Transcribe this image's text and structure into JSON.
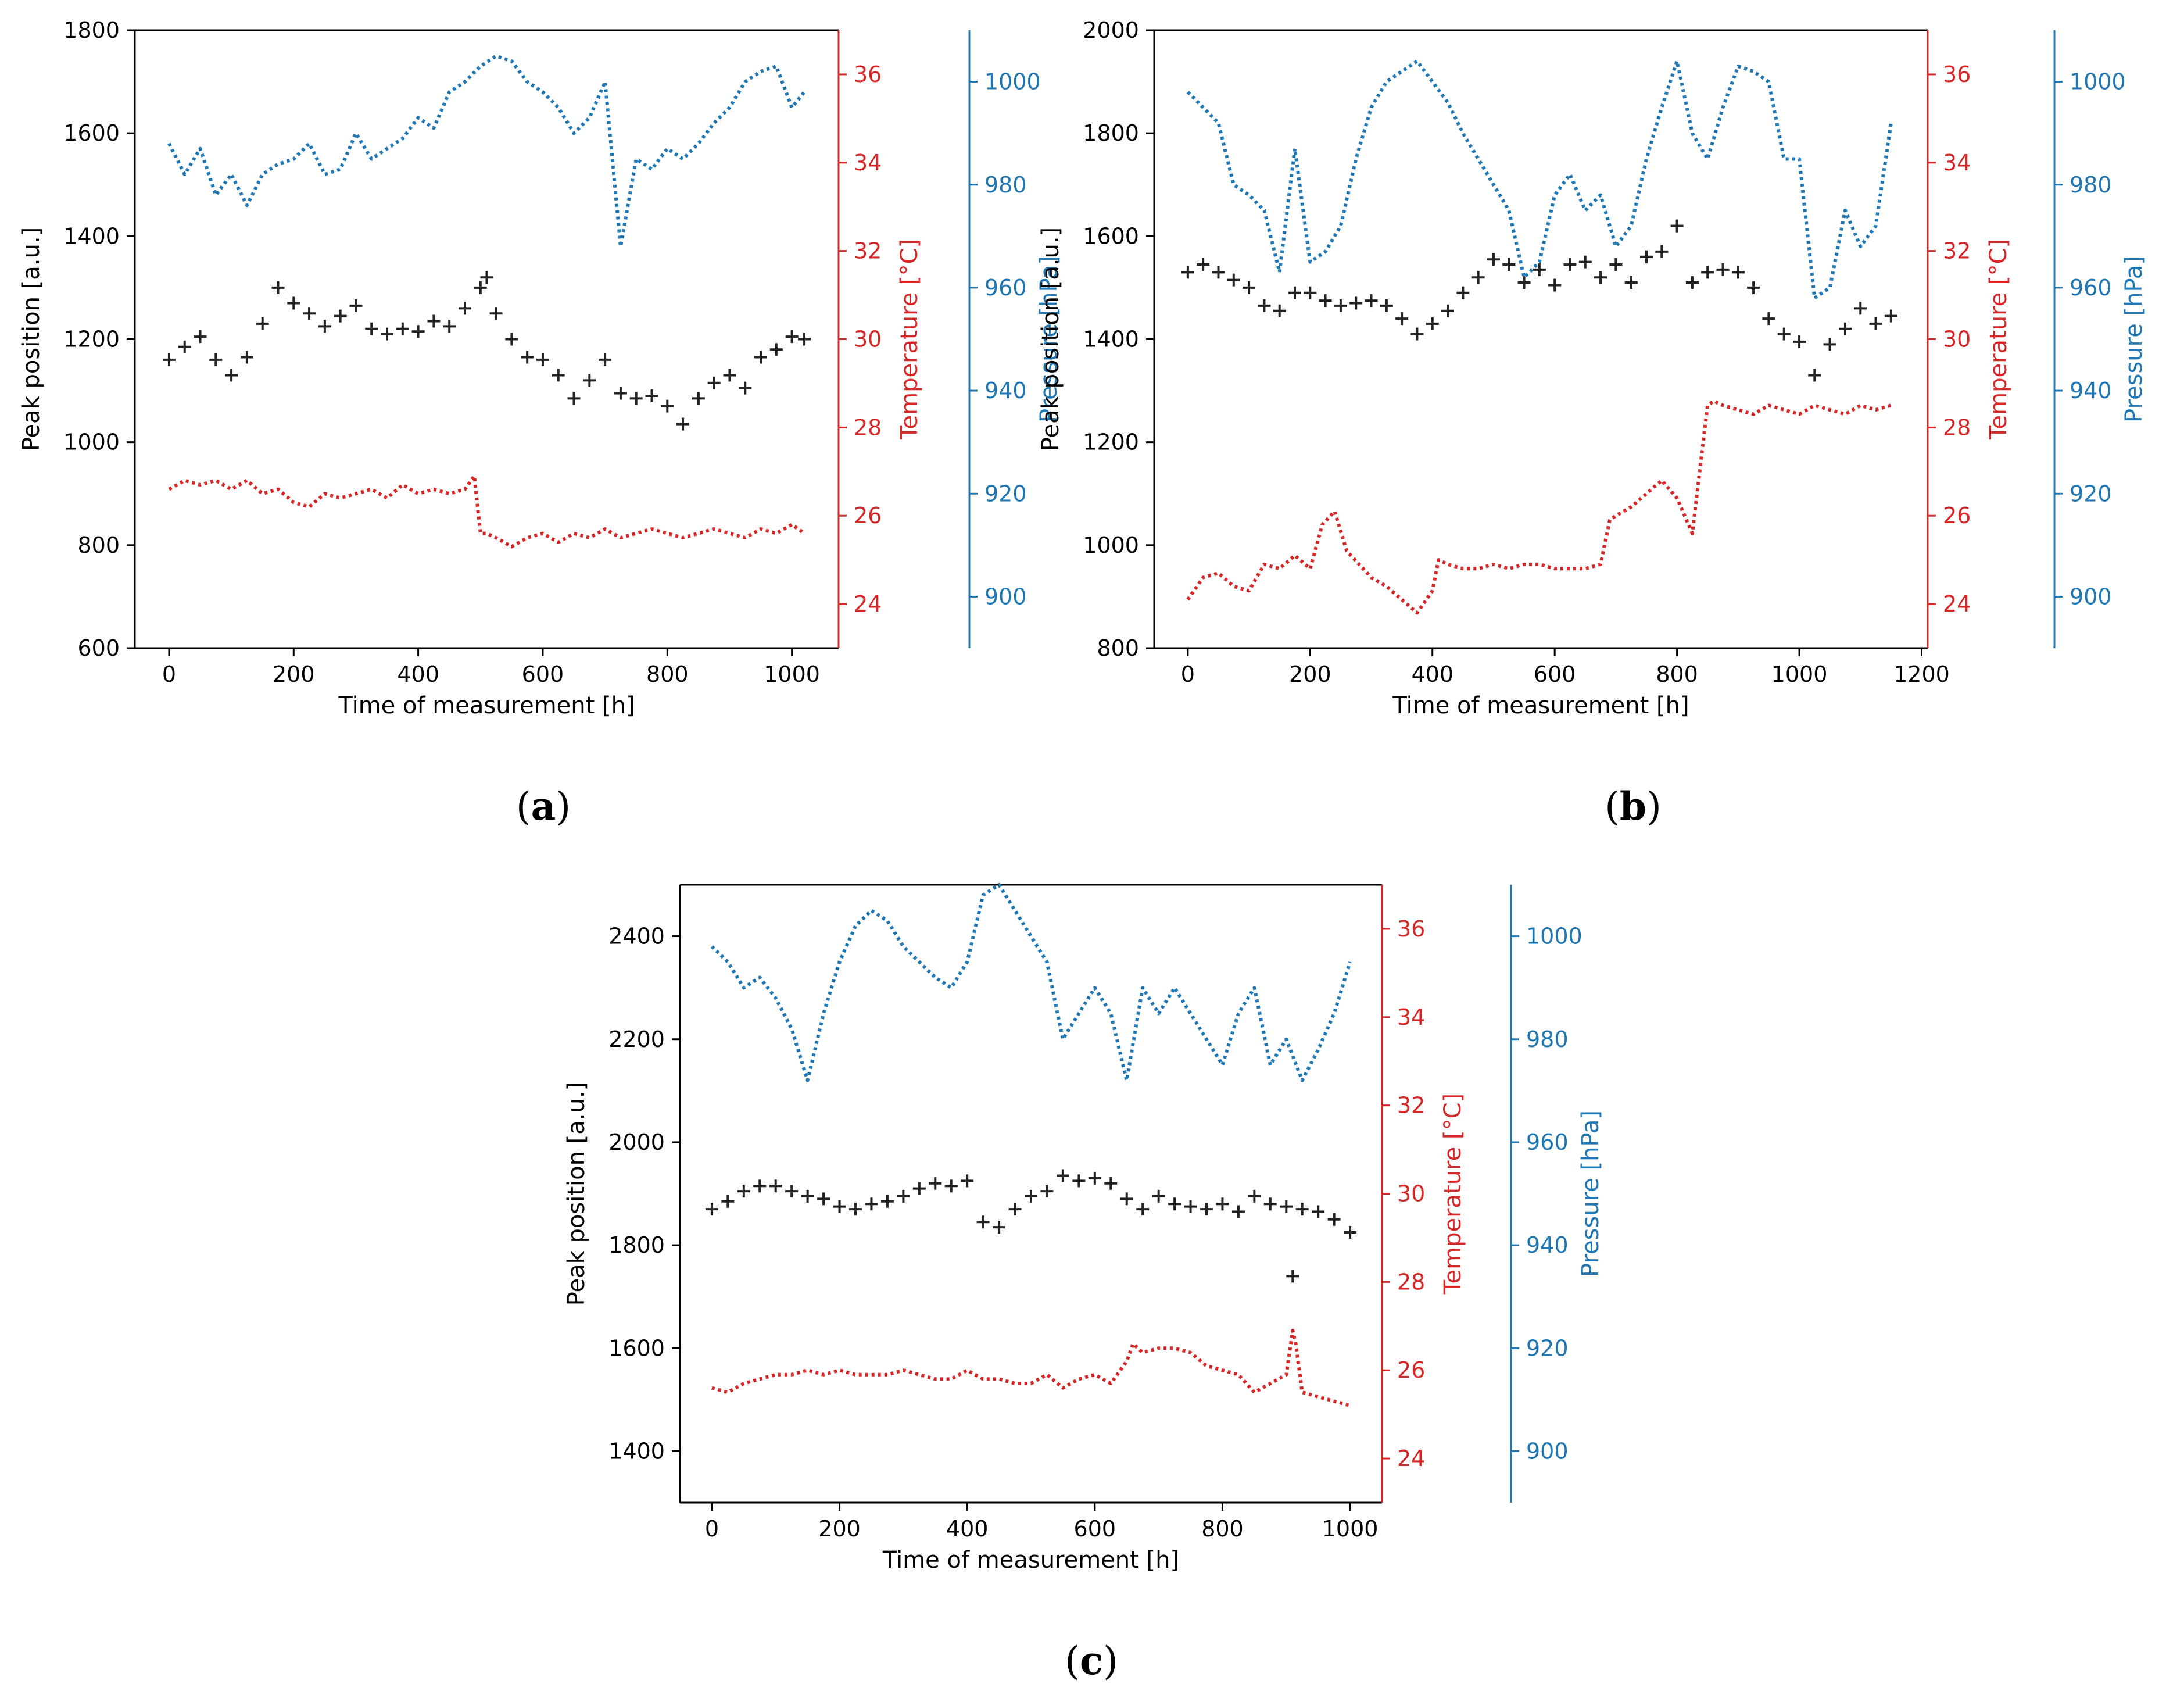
{
  "colors": {
    "peak": "#222222",
    "temperature": "#d62728",
    "pressure": "#1f77b4",
    "axis": "#000000"
  },
  "chart_data": [
    {
      "type": "line",
      "panel": "(a)",
      "caption": "(a)",
      "caption_letter": "a",
      "xlabel": "Time of measurement [h]",
      "ylabel": "Peak position [a.u.]",
      "y2label": "Temperature [°C]",
      "y3label": "Pressure [hPa]",
      "xlim": [
        -55,
        1075
      ],
      "xticks": [
        0,
        200,
        400,
        600,
        800,
        1000
      ],
      "ylim": [
        600,
        1800
      ],
      "yticks": [
        600,
        800,
        1000,
        1200,
        1400,
        1600,
        1800
      ],
      "y2lim": [
        23,
        37
      ],
      "y2ticks": [
        24,
        26,
        28,
        30,
        32,
        34,
        36
      ],
      "y3lim": [
        890,
        1010
      ],
      "y3ticks": [
        900,
        920,
        940,
        960,
        980,
        1000
      ],
      "series": [
        {
          "name": "Peak position",
          "axis": "left",
          "marker": "+",
          "x": [
            0,
            25,
            50,
            75,
            100,
            125,
            150,
            175,
            200,
            225,
            250,
            275,
            300,
            325,
            350,
            375,
            400,
            425,
            450,
            475,
            500,
            510,
            525,
            550,
            575,
            600,
            625,
            650,
            675,
            700,
            725,
            750,
            775,
            800,
            825,
            850,
            875,
            900,
            925,
            950,
            975,
            1000,
            1020
          ],
          "y": [
            1160,
            1185,
            1205,
            1160,
            1130,
            1165,
            1230,
            1300,
            1270,
            1250,
            1225,
            1245,
            1265,
            1220,
            1210,
            1220,
            1215,
            1235,
            1225,
            1260,
            1300,
            1320,
            1250,
            1200,
            1165,
            1160,
            1130,
            1085,
            1120,
            1160,
            1095,
            1085,
            1090,
            1070,
            1035,
            1085,
            1115,
            1130,
            1105,
            1165,
            1180,
            1205,
            1200
          ]
        },
        {
          "name": "Temperature",
          "axis": "right",
          "style": "dotted",
          "x": [
            0,
            25,
            50,
            75,
            100,
            125,
            150,
            175,
            200,
            225,
            250,
            275,
            300,
            325,
            350,
            375,
            400,
            425,
            450,
            475,
            490,
            500,
            510,
            525,
            550,
            575,
            600,
            625,
            650,
            675,
            700,
            725,
            750,
            775,
            800,
            825,
            850,
            875,
            900,
            925,
            950,
            975,
            1000,
            1020
          ],
          "y": [
            26.6,
            26.8,
            26.7,
            26.8,
            26.6,
            26.8,
            26.5,
            26.6,
            26.3,
            26.2,
            26.5,
            26.4,
            26.5,
            26.6,
            26.4,
            26.7,
            26.5,
            26.6,
            26.5,
            26.6,
            26.9,
            25.6,
            25.6,
            25.5,
            25.3,
            25.5,
            25.6,
            25.4,
            25.6,
            25.5,
            25.7,
            25.5,
            25.6,
            25.7,
            25.6,
            25.5,
            25.6,
            25.7,
            25.6,
            25.5,
            25.7,
            25.6,
            25.8,
            25.6
          ]
        },
        {
          "name": "Pressure",
          "axis": "right-offset",
          "style": "dotted",
          "x": [
            0,
            25,
            50,
            75,
            100,
            125,
            150,
            175,
            200,
            225,
            250,
            275,
            300,
            325,
            350,
            375,
            400,
            425,
            450,
            475,
            500,
            525,
            550,
            575,
            600,
            625,
            650,
            675,
            700,
            725,
            750,
            775,
            800,
            825,
            850,
            875,
            900,
            925,
            950,
            975,
            1000,
            1020
          ],
          "y": [
            988,
            982,
            987,
            978,
            982,
            976,
            982,
            984,
            985,
            988,
            982,
            983,
            990,
            985,
            987,
            989,
            993,
            991,
            998,
            1000,
            1003,
            1005,
            1004,
            1000,
            998,
            995,
            990,
            993,
            1000,
            968,
            985,
            983,
            987,
            985,
            988,
            992,
            995,
            1000,
            1002,
            1003,
            995,
            998
          ]
        }
      ]
    },
    {
      "type": "line",
      "panel": "(b)",
      "caption": "(b)",
      "caption_letter": "b",
      "xlabel": "Time of measurement [h]",
      "ylabel": "Peak position [a.u.]",
      "y2label": "Temperature [°C]",
      "y3label": "Pressure [hPa]",
      "xlim": [
        -55,
        1210
      ],
      "xticks": [
        0,
        200,
        400,
        600,
        800,
        1000,
        1200
      ],
      "ylim": [
        800,
        2000
      ],
      "yticks": [
        800,
        1000,
        1200,
        1400,
        1600,
        1800,
        2000
      ],
      "y2lim": [
        23,
        37
      ],
      "y2ticks": [
        24,
        26,
        28,
        30,
        32,
        34,
        36
      ],
      "y3lim": [
        890,
        1010
      ],
      "y3ticks": [
        900,
        920,
        940,
        960,
        980,
        1000
      ],
      "series": [
        {
          "name": "Peak position",
          "axis": "left",
          "marker": "+",
          "x": [
            0,
            25,
            50,
            75,
            100,
            125,
            150,
            175,
            200,
            225,
            250,
            275,
            300,
            325,
            350,
            375,
            400,
            425,
            450,
            475,
            500,
            525,
            550,
            575,
            600,
            625,
            650,
            675,
            700,
            725,
            750,
            775,
            800,
            825,
            850,
            875,
            900,
            925,
            950,
            975,
            1000,
            1025,
            1050,
            1075,
            1100,
            1125,
            1150
          ],
          "y": [
            1530,
            1545,
            1530,
            1515,
            1500,
            1465,
            1455,
            1490,
            1490,
            1475,
            1465,
            1470,
            1475,
            1465,
            1440,
            1410,
            1430,
            1455,
            1490,
            1520,
            1555,
            1545,
            1510,
            1535,
            1505,
            1545,
            1550,
            1520,
            1545,
            1510,
            1560,
            1570,
            1620,
            1510,
            1530,
            1535,
            1530,
            1500,
            1440,
            1410,
            1395,
            1330,
            1390,
            1420,
            1460,
            1430,
            1445
          ]
        },
        {
          "name": "Temperature",
          "axis": "right",
          "style": "dotted",
          "x": [
            0,
            25,
            50,
            75,
            100,
            125,
            150,
            175,
            200,
            220,
            240,
            260,
            280,
            300,
            325,
            350,
            375,
            400,
            410,
            425,
            450,
            475,
            500,
            525,
            550,
            575,
            600,
            625,
            650,
            675,
            690,
            700,
            725,
            750,
            775,
            800,
            825,
            850,
            860,
            875,
            900,
            925,
            950,
            975,
            1000,
            1025,
            1050,
            1075,
            1100,
            1125,
            1150
          ],
          "y": [
            24.1,
            24.6,
            24.7,
            24.4,
            24.3,
            24.9,
            24.8,
            25.1,
            24.8,
            25.8,
            26.1,
            25.2,
            24.9,
            24.6,
            24.4,
            24.1,
            23.8,
            24.3,
            25.0,
            24.9,
            24.8,
            24.8,
            24.9,
            24.8,
            24.9,
            24.9,
            24.8,
            24.8,
            24.8,
            24.9,
            25.9,
            26.0,
            26.2,
            26.5,
            26.8,
            26.4,
            25.6,
            28.5,
            28.6,
            28.5,
            28.4,
            28.3,
            28.5,
            28.4,
            28.3,
            28.5,
            28.4,
            28.3,
            28.5,
            28.4,
            28.5
          ]
        },
        {
          "name": "Pressure",
          "axis": "right-offset",
          "style": "dotted",
          "x": [
            0,
            25,
            50,
            75,
            100,
            125,
            150,
            175,
            200,
            225,
            250,
            275,
            300,
            325,
            350,
            375,
            400,
            425,
            450,
            475,
            500,
            525,
            550,
            575,
            600,
            625,
            650,
            675,
            700,
            725,
            750,
            775,
            800,
            825,
            850,
            875,
            900,
            925,
            950,
            975,
            1000,
            1025,
            1050,
            1075,
            1100,
            1125,
            1150
          ],
          "y": [
            998,
            995,
            992,
            980,
            978,
            975,
            963,
            987,
            965,
            967,
            972,
            985,
            995,
            1000,
            1002,
            1004,
            1000,
            996,
            990,
            985,
            980,
            975,
            962,
            965,
            978,
            982,
            975,
            978,
            968,
            972,
            985,
            995,
            1004,
            990,
            985,
            995,
            1003,
            1002,
            1000,
            985,
            985,
            958,
            960,
            975,
            968,
            972,
            992
          ]
        }
      ]
    },
    {
      "type": "line",
      "panel": "(c)",
      "caption": "(c)",
      "caption_letter": "c",
      "xlabel": "Time of measurement [h]",
      "ylabel": "Peak position [a.u.]",
      "y2label": "Temperature [°C]",
      "y3label": "Pressure [hPa]",
      "xlim": [
        -50,
        1050
      ],
      "xticks": [
        0,
        200,
        400,
        600,
        800,
        1000
      ],
      "ylim": [
        1300,
        2500
      ],
      "yticks": [
        1400,
        1600,
        1800,
        2000,
        2200,
        2400
      ],
      "y2lim": [
        23,
        37
      ],
      "y2ticks": [
        24,
        26,
        28,
        30,
        32,
        34,
        36
      ],
      "y3lim": [
        890,
        1010
      ],
      "y3ticks": [
        900,
        920,
        940,
        960,
        980,
        1000
      ],
      "series": [
        {
          "name": "Peak position",
          "axis": "left",
          "marker": "+",
          "x": [
            0,
            25,
            50,
            75,
            100,
            125,
            150,
            175,
            200,
            225,
            250,
            275,
            300,
            325,
            350,
            375,
            400,
            425,
            450,
            475,
            500,
            525,
            550,
            575,
            600,
            625,
            650,
            675,
            700,
            725,
            750,
            775,
            800,
            825,
            850,
            875,
            900,
            910,
            925,
            950,
            975,
            1000
          ],
          "y": [
            1870,
            1885,
            1905,
            1915,
            1915,
            1905,
            1895,
            1890,
            1875,
            1870,
            1880,
            1885,
            1895,
            1910,
            1920,
            1915,
            1925,
            1845,
            1835,
            1870,
            1895,
            1905,
            1935,
            1925,
            1930,
            1920,
            1890,
            1870,
            1895,
            1880,
            1875,
            1870,
            1880,
            1865,
            1895,
            1880,
            1875,
            1740,
            1870,
            1865,
            1850,
            1825
          ]
        },
        {
          "name": "Temperature",
          "axis": "right",
          "style": "dotted",
          "x": [
            0,
            25,
            50,
            75,
            100,
            125,
            150,
            175,
            200,
            225,
            250,
            275,
            300,
            325,
            350,
            375,
            400,
            425,
            450,
            475,
            500,
            525,
            550,
            575,
            600,
            625,
            650,
            660,
            675,
            700,
            725,
            750,
            775,
            800,
            825,
            850,
            875,
            900,
            910,
            915,
            925,
            950,
            975,
            1000
          ],
          "y": [
            25.6,
            25.5,
            25.7,
            25.8,
            25.9,
            25.9,
            26.0,
            25.9,
            26.0,
            25.9,
            25.9,
            25.9,
            26.0,
            25.9,
            25.8,
            25.8,
            26.0,
            25.8,
            25.8,
            25.7,
            25.7,
            25.9,
            25.6,
            25.8,
            25.9,
            25.7,
            26.2,
            26.6,
            26.4,
            26.5,
            26.5,
            26.4,
            26.1,
            26.0,
            25.9,
            25.5,
            25.7,
            25.9,
            26.9,
            26.6,
            25.5,
            25.4,
            25.3,
            25.2
          ]
        },
        {
          "name": "Pressure",
          "axis": "right-offset",
          "style": "dotted",
          "x": [
            0,
            25,
            50,
            75,
            100,
            125,
            150,
            175,
            200,
            225,
            250,
            275,
            300,
            325,
            350,
            375,
            400,
            425,
            450,
            475,
            500,
            525,
            550,
            575,
            600,
            625,
            650,
            675,
            700,
            725,
            750,
            775,
            800,
            825,
            850,
            875,
            900,
            925,
            950,
            975,
            1000
          ],
          "y": [
            998,
            995,
            990,
            992,
            988,
            982,
            972,
            985,
            995,
            1002,
            1005,
            1003,
            998,
            995,
            992,
            990,
            995,
            1008,
            1010,
            1005,
            1000,
            995,
            980,
            985,
            990,
            985,
            972,
            990,
            985,
            990,
            985,
            980,
            975,
            985,
            990,
            975,
            980,
            972,
            978,
            985,
            995
          ]
        }
      ]
    }
  ]
}
